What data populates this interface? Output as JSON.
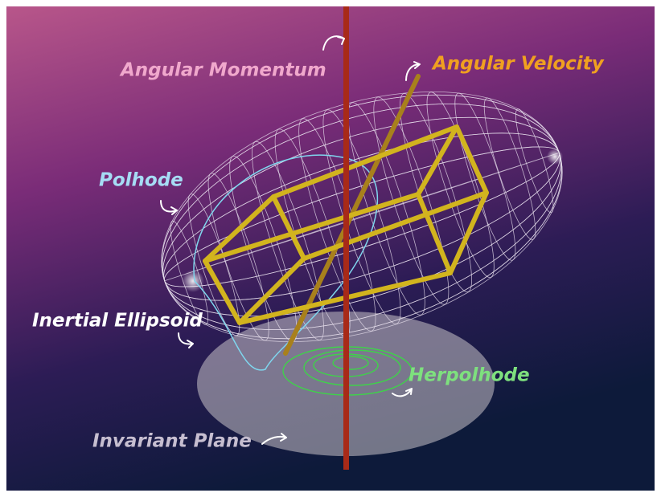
{
  "labels": {
    "angular_momentum": "Angular Momentum",
    "angular_velocity": "Angular Velocity",
    "polhode": "Polhode",
    "inertial_ellipsoid": "Inertial Ellipsoid",
    "herpolhode": "Herpolhode",
    "invariant_plane": "Invariant Plane"
  }
}
